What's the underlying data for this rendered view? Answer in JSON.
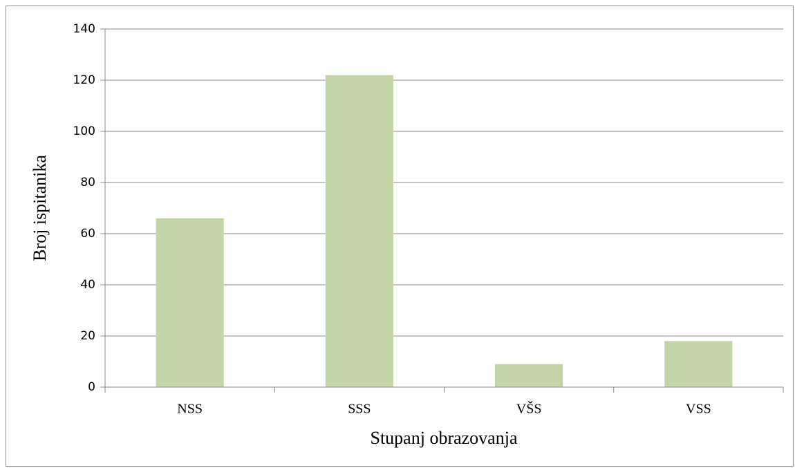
{
  "chart_data": {
    "type": "bar",
    "categories": [
      "NSS",
      "SSS",
      "VŠS",
      "VSS"
    ],
    "values": [
      66,
      122,
      9,
      18
    ],
    "color": "#c3d6a8",
    "xlabel": "Stupanj obrazovanja",
    "ylabel": "Broj ispitanika",
    "ylim": [
      0,
      140
    ],
    "yticks": [
      0,
      20,
      40,
      60,
      80,
      100,
      120,
      140
    ],
    "grid": true
  }
}
